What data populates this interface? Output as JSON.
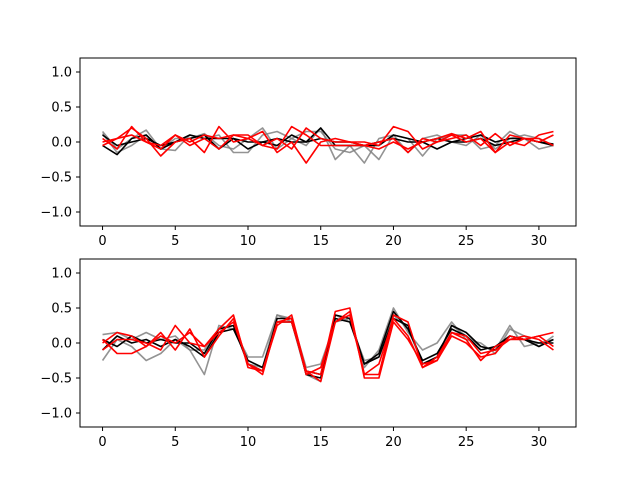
{
  "chart_data": [
    {
      "type": "line",
      "title": "",
      "xlabel": "",
      "ylabel": "",
      "xlim": [
        -1.55,
        32.55
      ],
      "ylim": [
        -1.2,
        1.2
      ],
      "xticks": [
        0,
        5,
        10,
        15,
        20,
        25,
        30
      ],
      "yticks": [
        -1.0,
        -0.5,
        0.0,
        0.5,
        1.0
      ],
      "xtick_labels": [
        "0",
        "5",
        "10",
        "15",
        "20",
        "25",
        "30"
      ],
      "ytick_labels": [
        "−1.0",
        "−0.5",
        "0.0",
        "0.5",
        "1.0"
      ],
      "grid": false,
      "legend": "none",
      "x": [
        0,
        1,
        2,
        3,
        4,
        5,
        6,
        7,
        8,
        9,
        10,
        11,
        12,
        13,
        14,
        15,
        16,
        17,
        18,
        19,
        20,
        21,
        22,
        23,
        24,
        25,
        26,
        27,
        28,
        29,
        30,
        31
      ],
      "series": [
        {
          "color": "#808080",
          "values": [
            0.15,
            -0.1,
            0.05,
            0.17,
            -0.1,
            -0.12,
            0.1,
            0.05,
            0.1,
            -0.15,
            -0.15,
            0.1,
            0.15,
            0.05,
            -0.05,
            0.2,
            -0.25,
            -0.05,
            -0.3,
            0.05,
            0.1,
            -0.15,
            0.05,
            0.1,
            0.0,
            -0.05,
            0.1,
            -0.1,
            0.05,
            0.1,
            0.05,
            -0.05
          ]
        },
        {
          "color": "#808080",
          "values": [
            0.12,
            -0.15,
            -0.05,
            0.1,
            -0.1,
            0.05,
            0.05,
            0.12,
            -0.05,
            -0.1,
            0.05,
            0.2,
            -0.1,
            0.05,
            0.15,
            0.15,
            -0.1,
            -0.15,
            -0.05,
            -0.25,
            0.1,
            0.05,
            -0.2,
            0.05,
            0.1,
            0.1,
            -0.1,
            -0.05,
            0.15,
            0.05,
            -0.1,
            -0.05
          ]
        },
        {
          "color": "#000000",
          "values": [
            -0.05,
            -0.18,
            0.05,
            0.1,
            -0.1,
            0.0,
            0.1,
            0.05,
            0.05,
            0.05,
            -0.1,
            0.0,
            -0.05,
            0.1,
            0.0,
            0.2,
            -0.05,
            -0.05,
            -0.05,
            -0.05,
            0.1,
            0.05,
            0.0,
            -0.1,
            0.0,
            0.05,
            0.1,
            0.0,
            0.05,
            0.05,
            0.0,
            -0.05
          ]
        },
        {
          "color": "#000000",
          "values": [
            0.1,
            -0.05,
            0.0,
            0.05,
            -0.05,
            0.0,
            0.05,
            0.1,
            -0.1,
            0.05,
            0.0,
            0.0,
            0.05,
            0.0,
            0.0,
            0.05,
            0.0,
            0.0,
            -0.05,
            0.0,
            0.05,
            0.0,
            0.0,
            0.05,
            0.0,
            0.0,
            0.05,
            -0.05,
            0.0,
            0.05,
            0.0,
            -0.03
          ]
        },
        {
          "color": "#ff0000",
          "values": [
            -0.05,
            0.05,
            0.2,
            0.05,
            -0.2,
            0.0,
            0.05,
            -0.15,
            0.22,
            0.0,
            0.05,
            -0.05,
            -0.1,
            0.22,
            0.1,
            -0.05,
            -0.05,
            -0.05,
            -0.05,
            0.0,
            0.05,
            -0.15,
            0.05,
            0.0,
            0.1,
            0.0,
            0.05,
            -0.15,
            0.0,
            -0.05,
            0.1,
            0.15
          ]
        },
        {
          "color": "#ff0000",
          "values": [
            0.05,
            -0.1,
            0.22,
            0.0,
            -0.05,
            0.1,
            -0.05,
            0.05,
            -0.1,
            0.1,
            0.05,
            0.15,
            -0.15,
            0.0,
            -0.3,
            0.0,
            0.05,
            0.0,
            0.0,
            -0.05,
            0.22,
            0.15,
            -0.1,
            0.0,
            0.05,
            0.1,
            -0.05,
            0.12,
            -0.05,
            0.05,
            0.0,
            0.1
          ]
        },
        {
          "color": "#ff0000",
          "values": [
            0.0,
            0.05,
            0.1,
            0.0,
            -0.1,
            0.1,
            0.0,
            0.1,
            0.05,
            0.1,
            0.1,
            -0.05,
            0.05,
            -0.1,
            0.2,
            0.05,
            0.0,
            0.0,
            -0.05,
            -0.1,
            0.0,
            -0.1,
            0.0,
            0.05,
            0.12,
            0.05,
            0.15,
            -0.15,
            0.1,
            0.05,
            0.05,
            -0.05
          ]
        }
      ]
    },
    {
      "type": "line",
      "title": "",
      "xlabel": "",
      "ylabel": "",
      "xlim": [
        -1.55,
        32.55
      ],
      "ylim": [
        -1.2,
        1.2
      ],
      "xticks": [
        0,
        5,
        10,
        15,
        20,
        25,
        30
      ],
      "yticks": [
        -1.0,
        -0.5,
        0.0,
        0.5,
        1.0
      ],
      "xtick_labels": [
        "0",
        "5",
        "10",
        "15",
        "20",
        "25",
        "30"
      ],
      "ytick_labels": [
        "−1.0",
        "−0.5",
        "0.0",
        "0.5",
        "1.0"
      ],
      "grid": false,
      "legend": "none",
      "x": [
        0,
        1,
        2,
        3,
        4,
        5,
        6,
        7,
        8,
        9,
        10,
        11,
        12,
        13,
        14,
        15,
        16,
        17,
        18,
        19,
        20,
        21,
        22,
        23,
        24,
        25,
        26,
        27,
        28,
        29,
        30,
        31
      ],
      "series": [
        {
          "color": "#808080",
          "values": [
            0.12,
            0.15,
            0.05,
            0.15,
            0.05,
            0.1,
            -0.1,
            -0.45,
            0.25,
            0.2,
            -0.2,
            -0.2,
            0.4,
            0.35,
            -0.35,
            -0.3,
            0.3,
            0.35,
            -0.35,
            -0.1,
            0.5,
            0.15,
            -0.1,
            0.0,
            0.3,
            0.05,
            0.0,
            -0.15,
            0.2,
            0.1,
            -0.05,
            0.1
          ]
        },
        {
          "color": "#808080",
          "values": [
            -0.25,
            0.05,
            -0.05,
            -0.25,
            -0.15,
            0.05,
            -0.1,
            -0.1,
            0.2,
            0.25,
            -0.3,
            -0.35,
            0.4,
            0.3,
            -0.45,
            -0.55,
            0.4,
            0.3,
            -0.25,
            -0.2,
            0.4,
            0.2,
            -0.3,
            -0.2,
            0.25,
            0.1,
            -0.05,
            -0.1,
            0.25,
            -0.05,
            0.0,
            0.05
          ]
        },
        {
          "color": "#000000",
          "values": [
            -0.1,
            0.1,
            0.0,
            0.05,
            -0.05,
            0.05,
            -0.05,
            -0.2,
            0.15,
            0.2,
            -0.25,
            -0.35,
            0.3,
            0.3,
            -0.4,
            -0.45,
            0.35,
            0.3,
            -0.3,
            -0.15,
            0.45,
            0.2,
            -0.25,
            -0.15,
            0.2,
            0.1,
            -0.1,
            -0.05,
            0.1,
            0.05,
            -0.05,
            0.05
          ]
        },
        {
          "color": "#000000",
          "values": [
            0.05,
            -0.05,
            0.1,
            0.0,
            0.05,
            0.0,
            0.0,
            -0.15,
            0.2,
            0.25,
            -0.3,
            -0.4,
            0.35,
            0.35,
            -0.45,
            -0.5,
            0.4,
            0.35,
            -0.3,
            -0.2,
            0.35,
            0.25,
            -0.3,
            -0.2,
            0.25,
            0.15,
            -0.05,
            -0.1,
            0.1,
            0.05,
            0.0,
            0.0
          ]
        },
        {
          "color": "#ff0000",
          "values": [
            0.0,
            0.15,
            0.1,
            -0.05,
            0.15,
            -0.1,
            0.2,
            -0.2,
            0.1,
            0.35,
            -0.3,
            -0.45,
            0.3,
            0.35,
            -0.45,
            -0.35,
            0.3,
            0.45,
            -0.45,
            -0.3,
            0.35,
            0.1,
            -0.35,
            -0.2,
            0.15,
            0.1,
            -0.15,
            -0.1,
            0.05,
            0.1,
            0.05,
            -0.1
          ]
        },
        {
          "color": "#ff0000",
          "values": [
            -0.1,
            0.05,
            0.05,
            0.0,
            -0.1,
            0.25,
            0.0,
            -0.05,
            0.2,
            0.4,
            -0.35,
            -0.4,
            0.25,
            0.4,
            -0.4,
            -0.45,
            0.45,
            0.5,
            -0.5,
            -0.5,
            0.3,
            0.05,
            -0.3,
            -0.25,
            0.1,
            0.0,
            -0.2,
            -0.15,
            0.1,
            0.05,
            0.1,
            0.15
          ]
        },
        {
          "color": "#ff0000",
          "values": [
            0.05,
            -0.15,
            -0.15,
            -0.05,
            0.1,
            0.0,
            0.15,
            -0.05,
            0.15,
            0.3,
            -0.3,
            -0.4,
            0.3,
            0.3,
            -0.4,
            -0.55,
            0.3,
            0.4,
            -0.45,
            -0.45,
            0.4,
            0.3,
            -0.35,
            -0.25,
            0.15,
            0.05,
            -0.25,
            -0.05,
            0.05,
            0.05,
            0.1,
            -0.05
          ]
        }
      ]
    }
  ]
}
